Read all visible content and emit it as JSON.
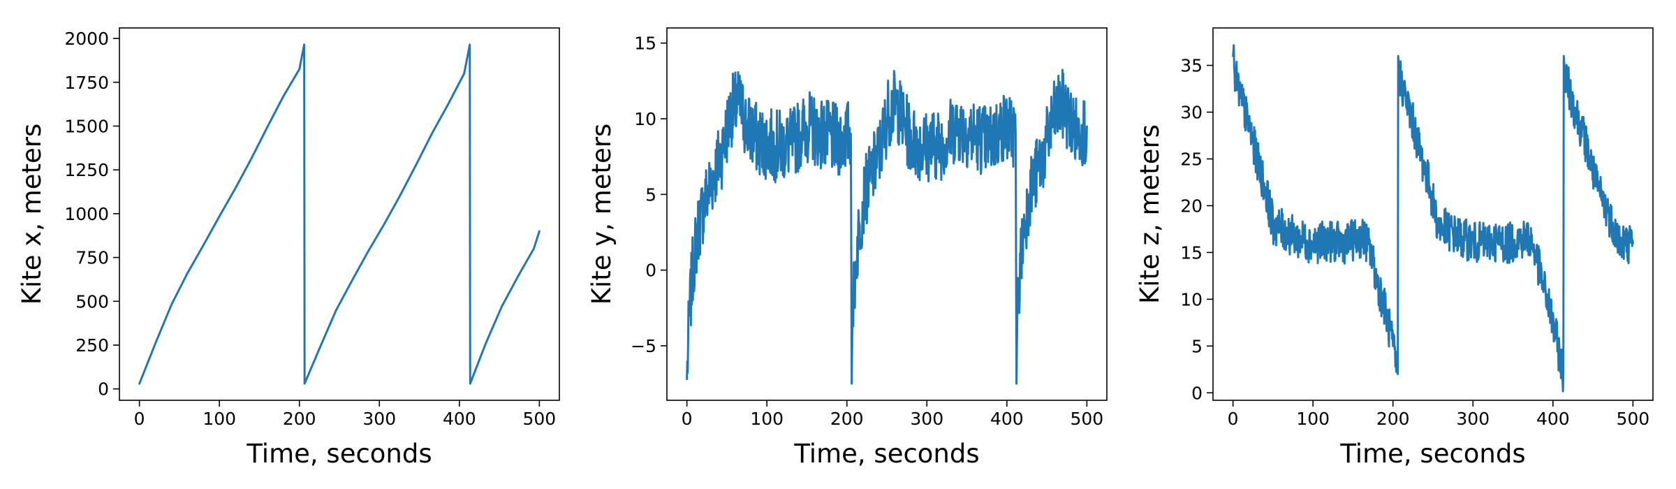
{
  "colors": {
    "series": "#1f77b4",
    "axes": "#000000",
    "background": "#ffffff"
  },
  "chart_data": [
    {
      "type": "line",
      "title": "",
      "xlabel": "Time, seconds",
      "ylabel": "Kite x, meters",
      "xlim": [
        -25,
        525
      ],
      "ylim": [
        -65,
        2060
      ],
      "xticks": [
        0,
        100,
        200,
        300,
        400,
        500
      ],
      "yticks": [
        0,
        250,
        500,
        750,
        1000,
        1250,
        1500,
        1750,
        2000
      ],
      "grid": false,
      "legend": "none",
      "noise": 0,
      "series": [
        {
          "x": [
            0,
            20,
            40,
            60,
            80,
            100,
            120,
            140,
            160,
            180,
            200,
            206,
            206.5,
            226,
            246,
            266,
            286,
            306,
            326,
            346,
            366,
            386,
            406,
            413,
            413.5,
            433,
            453,
            473,
            493,
            500
          ],
          "y": [
            30,
            260,
            480,
            660,
            820,
            985,
            1145,
            1315,
            1495,
            1670,
            1825,
            1965,
            30,
            240,
            450,
            620,
            785,
            940,
            1105,
            1280,
            1460,
            1625,
            1800,
            1965,
            30,
            260,
            470,
            640,
            800,
            900
          ]
        }
      ]
    },
    {
      "type": "line",
      "title": "",
      "xlabel": "Time, seconds",
      "ylabel": "Kite y, meters",
      "xlim": [
        -25,
        525
      ],
      "ylim": [
        -8.6,
        16
      ],
      "xticks": [
        0,
        100,
        200,
        300,
        400,
        500
      ],
      "yticks": [
        -5,
        0,
        5,
        10,
        15
      ],
      "grid": false,
      "legend": "none",
      "noise": 2.4,
      "series": [
        {
          "x": [
            0,
            3,
            8,
            15,
            25,
            35,
            45,
            55,
            65,
            75,
            90,
            110,
            130,
            150,
            170,
            190,
            205,
            206,
            207,
            211,
            216,
            222,
            232,
            242,
            252,
            262,
            272,
            282,
            297,
            317,
            337,
            357,
            377,
            397,
            411,
            412,
            413,
            417,
            422,
            428,
            438,
            448,
            458,
            468,
            478,
            488,
            500
          ],
          "y": [
            -7.2,
            -3,
            0.5,
            3,
            5,
            6.5,
            8,
            10.5,
            11,
            9.5,
            8.5,
            8.2,
            8.3,
            9.5,
            9,
            8.5,
            9,
            -7.5,
            -3,
            0.5,
            3,
            5,
            6.5,
            8,
            10.5,
            11,
            9.5,
            8.5,
            8.2,
            8.3,
            9.5,
            9,
            8.5,
            9.5,
            9,
            -7.5,
            -3,
            0.5,
            3,
            5,
            6.5,
            8,
            10,
            11,
            10,
            9,
            9.5
          ]
        }
      ]
    },
    {
      "type": "line",
      "title": "",
      "xlabel": "Time, seconds",
      "ylabel": "Kite z, meters",
      "xlim": [
        -25,
        525
      ],
      "ylim": [
        -0.8,
        39
      ],
      "xticks": [
        0,
        100,
        200,
        300,
        400,
        500
      ],
      "yticks": [
        0,
        5,
        10,
        15,
        20,
        25,
        30,
        35
      ],
      "grid": false,
      "legend": "none",
      "noise": 2.2,
      "series": [
        {
          "x": [
            0,
            2,
            10,
            20,
            30,
            40,
            50,
            60,
            80,
            100,
            120,
            140,
            155,
            165,
            172,
            180,
            190,
            200,
            206,
            206.5,
            208,
            216,
            226,
            236,
            246,
            256,
            266,
            286,
            306,
            326,
            346,
            361,
            371,
            378,
            386,
            396,
            406,
            413,
            413.5,
            415,
            425,
            440,
            455,
            470,
            485,
            500
          ],
          "y": [
            36,
            34,
            31.5,
            28.5,
            25,
            22,
            18,
            17.5,
            16.5,
            16,
            16.2,
            16,
            16.5,
            16.5,
            15,
            12,
            9,
            5,
            2,
            36,
            34,
            31.5,
            28.5,
            25,
            22,
            18,
            17.5,
            16.5,
            16,
            16.2,
            16,
            16.5,
            16.5,
            15,
            12,
            9,
            5,
            2,
            36,
            34,
            31,
            27,
            22,
            19,
            16,
            16
          ]
        }
      ]
    }
  ]
}
